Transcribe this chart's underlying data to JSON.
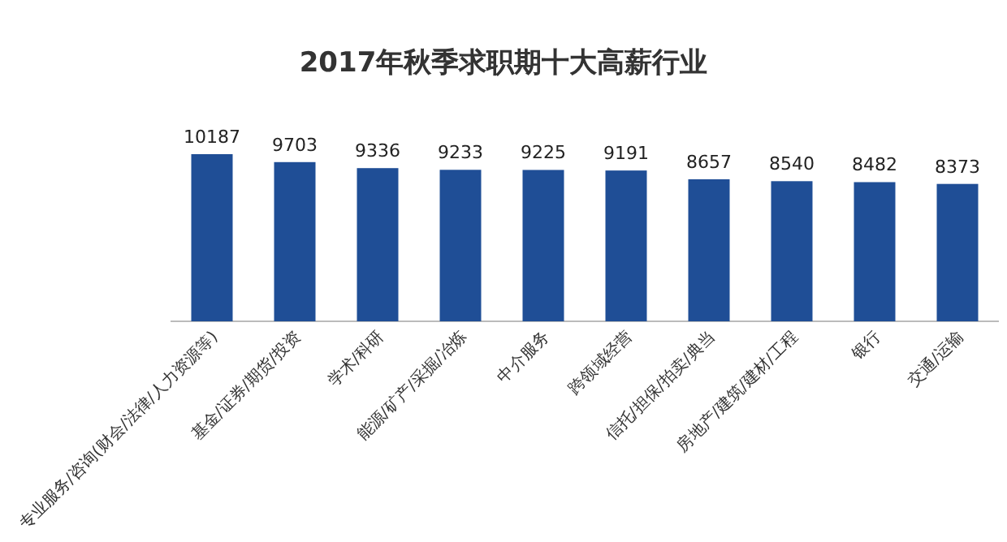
{
  "chart_data": {
    "type": "bar",
    "title": "2017年秋季求职期十大高薪行业",
    "categories": [
      "专业服务/咨询(财会/法律/人力资源等)",
      "基金/证券/期货/投资",
      "学术/科研",
      "能源/矿产/采掘/冶炼",
      "中介服务",
      "跨领域经营",
      "信托/担保/拍卖/典当",
      "房地产/建筑/建材/工程",
      "银行",
      "交通/运输"
    ],
    "values": [
      10187,
      9703,
      9336,
      9233,
      9225,
      9191,
      8657,
      8540,
      8482,
      8373
    ],
    "color": "#1f4e96",
    "data_labels": true
  }
}
